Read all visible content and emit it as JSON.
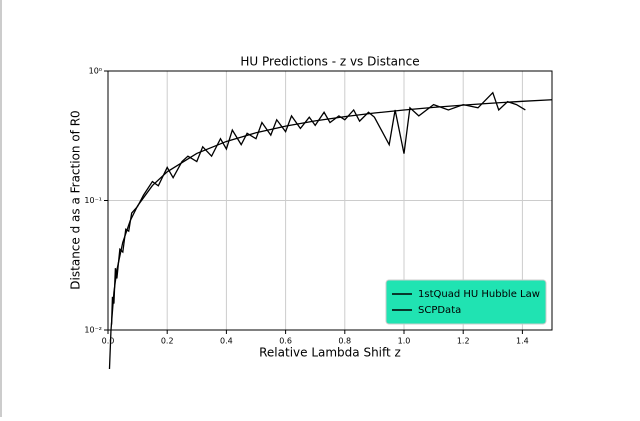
{
  "chart_data": {
    "type": "line",
    "title": "HU Predictions - z vs Distance",
    "x_label": "Relative Lambda Shift z",
    "y_label": "Distance d as a Fraction of R0",
    "log_y": true,
    "grid": true,
    "legend": "lower right",
    "legend_color": "#20e3b2",
    "xlim": [
      0,
      1.5
    ],
    "xticks": [
      {
        "value": 0,
        "label": "0.0"
      },
      0.2,
      0.4,
      0.6,
      0.8,
      {
        "value": 1,
        "label": "1.0"
      },
      1.2,
      1.4
    ],
    "ylim": [
      0.01,
      1
    ],
    "yticks": [
      {
        "value": 0.01,
        "label": "10⁻²"
      },
      {
        "value": 0.1,
        "label": "10⁻¹"
      },
      {
        "value": 1,
        "label": "10⁰"
      }
    ],
    "series": [
      {
        "name": "1stQuad HU Hubble Law",
        "color": "#000000",
        "x": [
          0.005,
          0.01,
          0.02,
          0.03,
          0.05,
          0.075,
          0.1,
          0.15,
          0.2,
          0.3,
          0.4,
          0.5,
          0.6,
          0.7,
          0.8,
          0.9,
          1.0,
          1.1,
          1.2,
          1.3,
          1.4,
          1.5
        ],
        "values": [
          0.005,
          0.0099,
          0.0196,
          0.0291,
          0.0476,
          0.0698,
          0.0909,
          0.1304,
          0.1667,
          0.2308,
          0.2857,
          0.3333,
          0.375,
          0.4118,
          0.4444,
          0.4737,
          0.5,
          0.5238,
          0.5455,
          0.5652,
          0.5833,
          0.6
        ]
      },
      {
        "name": "SCPData",
        "color": "#000000",
        "x": [
          0.012,
          0.015,
          0.02,
          0.025,
          0.03,
          0.04,
          0.05,
          0.06,
          0.07,
          0.08,
          0.1,
          0.12,
          0.15,
          0.17,
          0.2,
          0.22,
          0.25,
          0.27,
          0.3,
          0.32,
          0.35,
          0.38,
          0.4,
          0.42,
          0.45,
          0.47,
          0.5,
          0.52,
          0.55,
          0.57,
          0.6,
          0.62,
          0.65,
          0.68,
          0.7,
          0.73,
          0.75,
          0.78,
          0.8,
          0.83,
          0.85,
          0.88,
          0.9,
          0.95,
          0.97,
          1.0,
          1.02,
          1.05,
          1.1,
          1.15,
          1.2,
          1.25,
          1.3,
          1.32,
          1.35,
          1.38,
          1.41
        ],
        "values": [
          0.011,
          0.018,
          0.016,
          0.03,
          0.025,
          0.042,
          0.04,
          0.06,
          0.058,
          0.08,
          0.09,
          0.11,
          0.14,
          0.13,
          0.18,
          0.15,
          0.2,
          0.22,
          0.2,
          0.26,
          0.22,
          0.3,
          0.25,
          0.35,
          0.27,
          0.33,
          0.3,
          0.4,
          0.32,
          0.42,
          0.34,
          0.45,
          0.36,
          0.44,
          0.38,
          0.48,
          0.4,
          0.45,
          0.42,
          0.5,
          0.41,
          0.48,
          0.44,
          0.27,
          0.5,
          0.23,
          0.52,
          0.45,
          0.55,
          0.5,
          0.55,
          0.52,
          0.68,
          0.5,
          0.58,
          0.55,
          0.5
        ]
      }
    ]
  }
}
